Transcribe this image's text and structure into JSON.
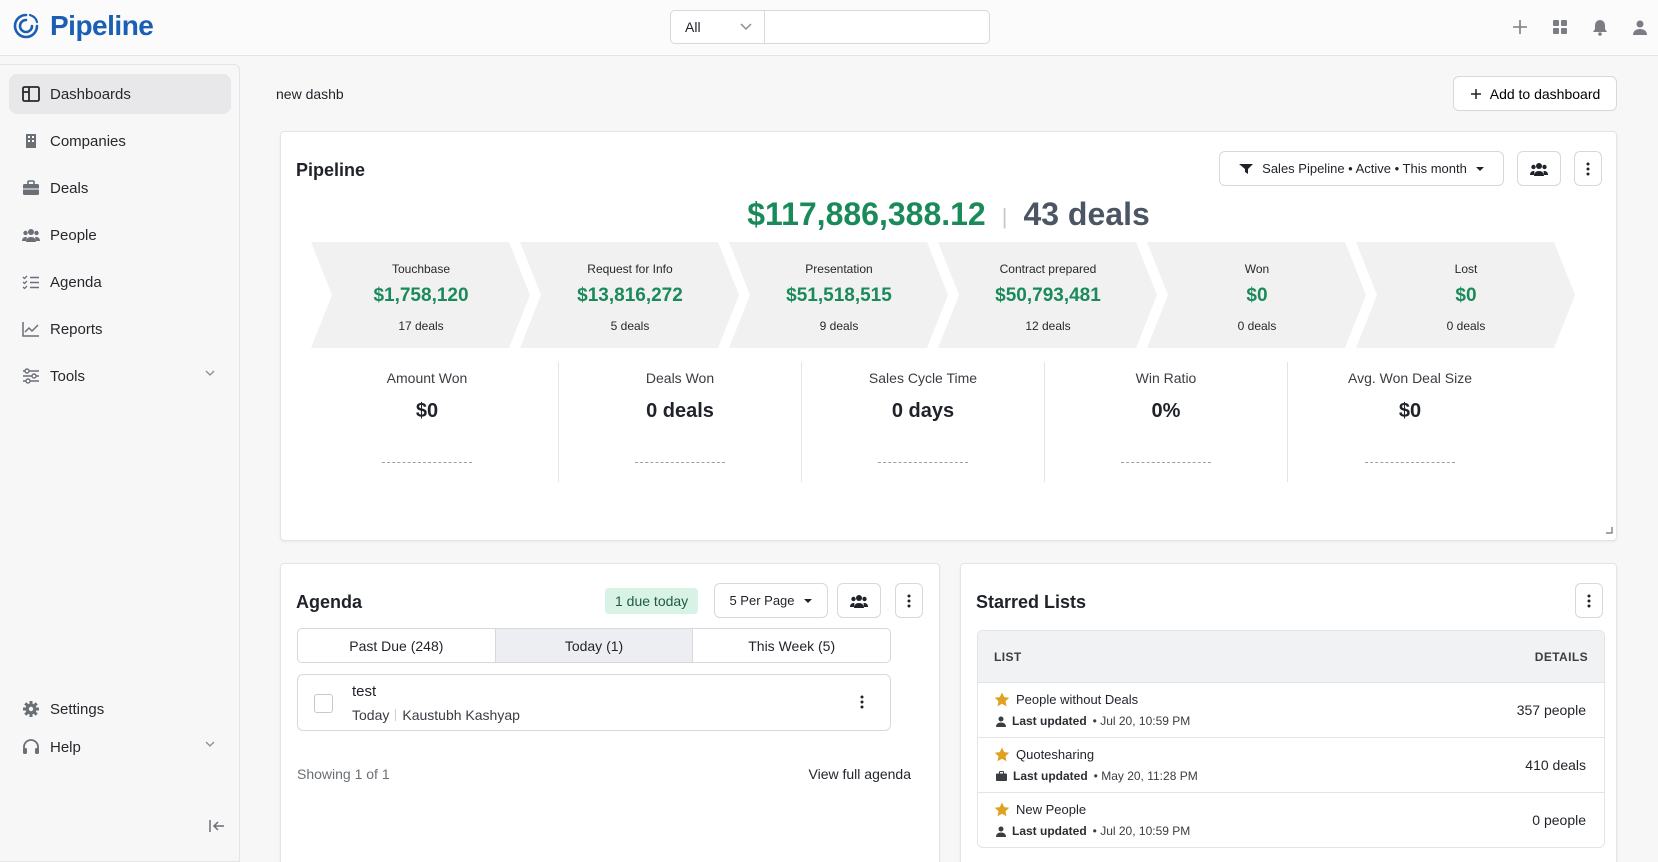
{
  "app": {
    "name": "Pipeline"
  },
  "search": {
    "scope": "All",
    "placeholder": ""
  },
  "sidebar": {
    "items": [
      {
        "label": "Dashboards"
      },
      {
        "label": "Companies"
      },
      {
        "label": "Deals"
      },
      {
        "label": "People"
      },
      {
        "label": "Agenda"
      },
      {
        "label": "Reports"
      },
      {
        "label": "Tools"
      }
    ],
    "settings": "Settings",
    "help": "Help"
  },
  "page": {
    "title": "new dashb",
    "add_button": "Add to dashboard"
  },
  "pipeline": {
    "title": "Pipeline",
    "filter": "Sales Pipeline • Active • This month",
    "total_amount": "$117,886,388.12",
    "total_deals": "43 deals",
    "stages": [
      {
        "name": "Touchbase",
        "amount": "$1,758,120",
        "deals": "17 deals"
      },
      {
        "name": "Request for Info",
        "amount": "$13,816,272",
        "deals": "5 deals"
      },
      {
        "name": "Presentation",
        "amount": "$51,518,515",
        "deals": "9 deals"
      },
      {
        "name": "Contract prepared",
        "amount": "$50,793,481",
        "deals": "12 deals"
      },
      {
        "name": "Won",
        "amount": "$0",
        "deals": "0 deals"
      },
      {
        "name": "Lost",
        "amount": "$0",
        "deals": "0 deals"
      }
    ],
    "metrics": [
      {
        "label": "Amount Won",
        "value": "$0"
      },
      {
        "label": "Deals Won",
        "value": "0 deals"
      },
      {
        "label": "Sales Cycle Time",
        "value": "0 days"
      },
      {
        "label": "Win Ratio",
        "value": "0%"
      },
      {
        "label": "Avg. Won Deal Size",
        "value": "$0"
      }
    ]
  },
  "agenda": {
    "title": "Agenda",
    "due_badge": "1 due today",
    "per_page": "5 Per Page",
    "tabs": [
      {
        "label": "Past Due (248)"
      },
      {
        "label": "Today (1)"
      },
      {
        "label": "This Week (5)"
      }
    ],
    "item": {
      "title": "test",
      "when": "Today",
      "person": "Kaustubh Kashyap"
    },
    "showing": "Showing 1 of 1",
    "view_full": "View full agenda"
  },
  "starred": {
    "title": "Starred Lists",
    "col_list": "LIST",
    "col_details": "DETAILS",
    "rows": [
      {
        "name": "People without Deals",
        "updated_label": "Last updated",
        "updated": "• Jul 20, 10:59 PM",
        "detail": "357 people"
      },
      {
        "name": "Quotesharing",
        "updated_label": "Last updated",
        "updated": "• May 20, 11:28 PM",
        "detail": "410 deals"
      },
      {
        "name": "New People",
        "updated_label": "Last updated",
        "updated": "• Jul 20, 10:59 PM",
        "detail": "0 people"
      }
    ]
  },
  "colors": {
    "brand": "#1a5fb4",
    "money": "#1a8a5a",
    "star": "#e0a020"
  }
}
